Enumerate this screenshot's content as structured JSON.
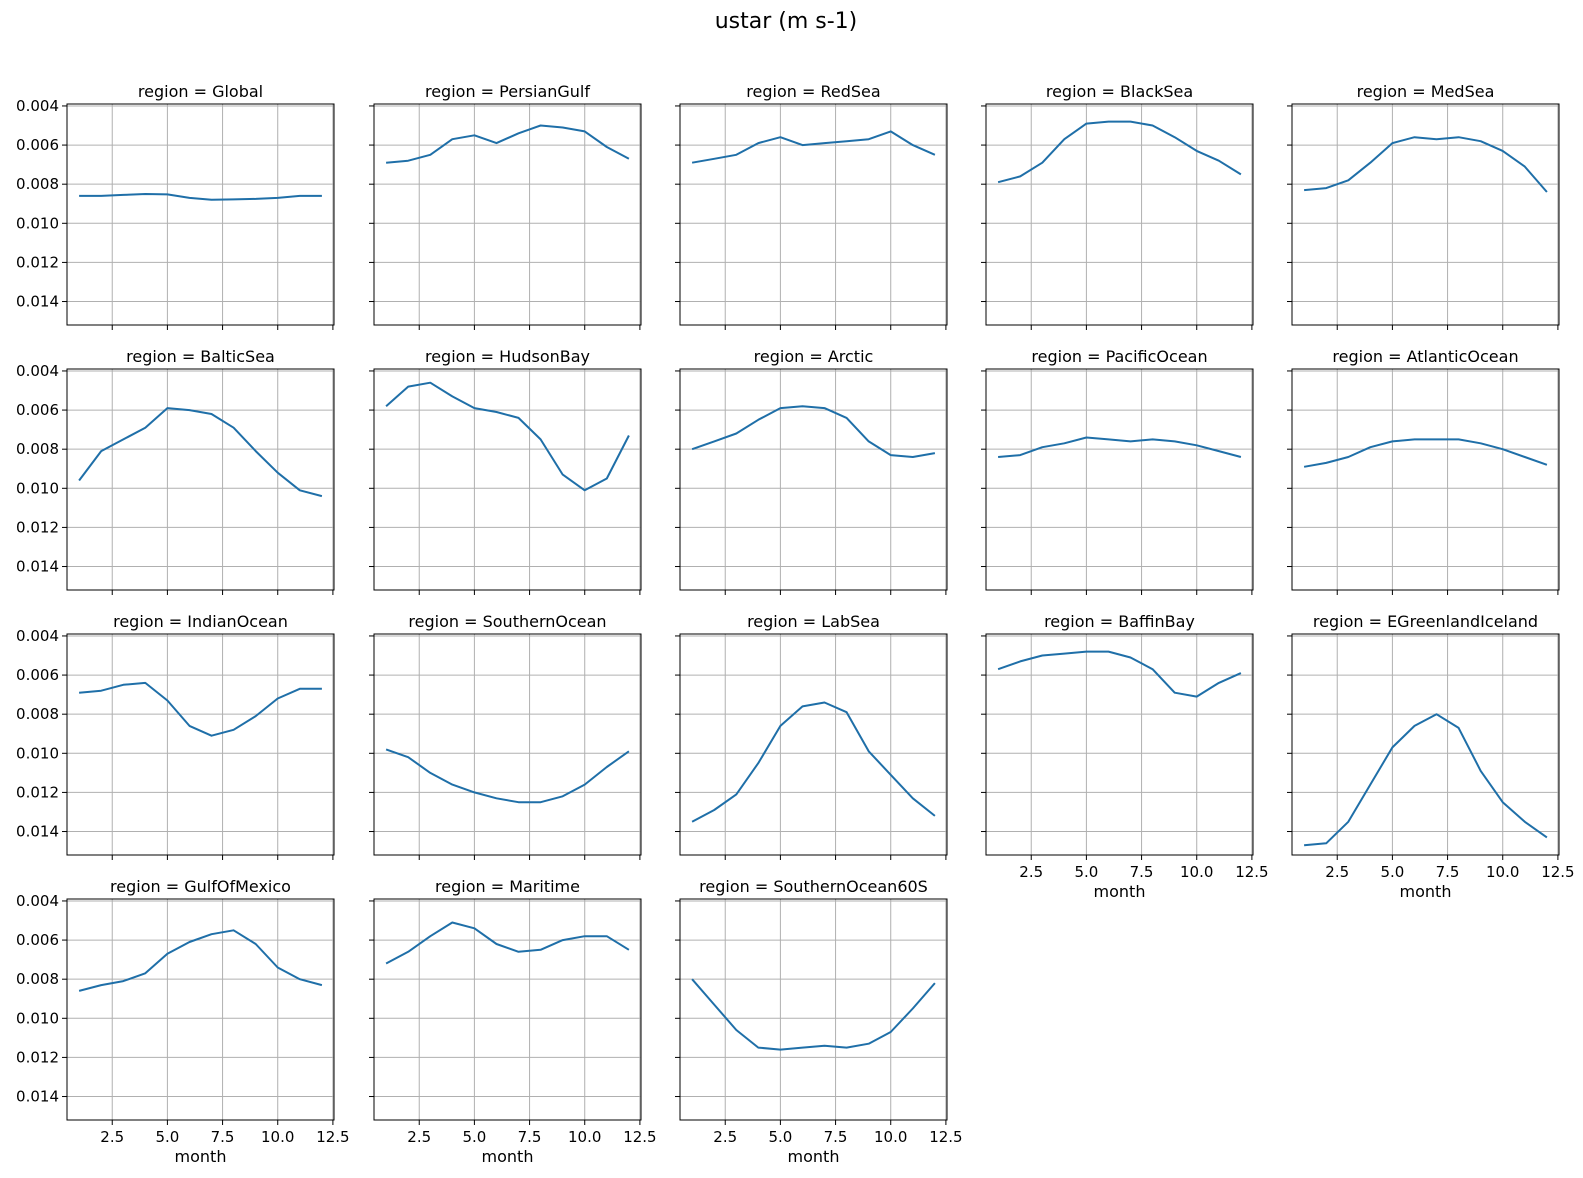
{
  "chart_data": {
    "type": "line",
    "title": "ustar (m s-1)",
    "xlabel": "month",
    "ylabel": "",
    "xlim": [
      0.45,
      12.55
    ],
    "ylim": [
      0.0152,
      0.0039
    ],
    "y_inverted": true,
    "xticks": [
      2.5,
      5.0,
      7.5,
      10.0,
      12.5
    ],
    "xtick_labels": [
      "2.5",
      "5.0",
      "7.5",
      "10.0",
      "12.5"
    ],
    "yticks": [
      0.004,
      0.006,
      0.008,
      0.01,
      0.012,
      0.014
    ],
    "ytick_labels": [
      "0.004",
      "0.006",
      "0.008",
      "0.010",
      "0.012",
      "0.014"
    ],
    "grid": true,
    "line_color": "#1f6fa8",
    "x": [
      1,
      2,
      3,
      4,
      5,
      6,
      7,
      8,
      9,
      10,
      11,
      12
    ],
    "panels": [
      {
        "title": "region = Global",
        "values": [
          0.0086,
          0.0086,
          0.00855,
          0.0085,
          0.00852,
          0.0087,
          0.0088,
          0.00878,
          0.00875,
          0.0087,
          0.0086,
          0.0086
        ]
      },
      {
        "title": "region = PersianGulf",
        "values": [
          0.0069,
          0.0068,
          0.0065,
          0.0057,
          0.0055,
          0.0059,
          0.0054,
          0.005,
          0.0051,
          0.0053,
          0.0061,
          0.0067
        ]
      },
      {
        "title": "region = RedSea",
        "values": [
          0.0069,
          0.0067,
          0.0065,
          0.0059,
          0.0056,
          0.006,
          0.0059,
          0.0058,
          0.0057,
          0.0053,
          0.006,
          0.0065
        ]
      },
      {
        "title": "region = BlackSea",
        "values": [
          0.0079,
          0.0076,
          0.0069,
          0.0057,
          0.0049,
          0.0048,
          0.0048,
          0.005,
          0.0056,
          0.0063,
          0.0068,
          0.0075
        ]
      },
      {
        "title": "region = MedSea",
        "values": [
          0.0083,
          0.0082,
          0.0078,
          0.0069,
          0.0059,
          0.0056,
          0.0057,
          0.0056,
          0.0058,
          0.0063,
          0.0071,
          0.0084
        ]
      },
      {
        "title": "region = BalticSea",
        "values": [
          0.0096,
          0.0081,
          0.0075,
          0.0069,
          0.0059,
          0.006,
          0.0062,
          0.0069,
          0.0081,
          0.0092,
          0.0101,
          0.0104
        ]
      },
      {
        "title": "region = HudsonBay",
        "values": [
          0.0058,
          0.0048,
          0.0046,
          0.0053,
          0.0059,
          0.0061,
          0.0064,
          0.0075,
          0.0093,
          0.0101,
          0.0095,
          0.0073
        ]
      },
      {
        "title": "region = Arctic",
        "values": [
          0.008,
          0.0076,
          0.0072,
          0.0065,
          0.0059,
          0.0058,
          0.0059,
          0.0064,
          0.0076,
          0.0083,
          0.0084,
          0.0082
        ]
      },
      {
        "title": "region = PacificOcean",
        "values": [
          0.0084,
          0.0083,
          0.0079,
          0.0077,
          0.0074,
          0.0075,
          0.0076,
          0.0075,
          0.0076,
          0.0078,
          0.0081,
          0.0084
        ]
      },
      {
        "title": "region = AtlanticOcean",
        "values": [
          0.0089,
          0.0087,
          0.0084,
          0.0079,
          0.0076,
          0.0075,
          0.0075,
          0.0075,
          0.0077,
          0.008,
          0.0084,
          0.0088
        ]
      },
      {
        "title": "region = IndianOcean",
        "values": [
          0.0069,
          0.0068,
          0.0065,
          0.0064,
          0.0073,
          0.0086,
          0.0091,
          0.0088,
          0.0081,
          0.0072,
          0.0067,
          0.0067
        ]
      },
      {
        "title": "region = SouthernOcean",
        "values": [
          0.0098,
          0.0102,
          0.011,
          0.0116,
          0.012,
          0.0123,
          0.0125,
          0.0125,
          0.0122,
          0.0116,
          0.0107,
          0.0099
        ]
      },
      {
        "title": "region = LabSea",
        "values": [
          0.0135,
          0.0129,
          0.0121,
          0.0105,
          0.0086,
          0.0076,
          0.0074,
          0.0079,
          0.0099,
          0.0111,
          0.0123,
          0.0132
        ]
      },
      {
        "title": "region = BaffinBay",
        "values": [
          0.0057,
          0.0053,
          0.005,
          0.0049,
          0.0048,
          0.0048,
          0.0051,
          0.0057,
          0.0069,
          0.0071,
          0.0064,
          0.0059
        ]
      },
      {
        "title": "region = EGreenlandIceland",
        "values": [
          0.0147,
          0.0146,
          0.0135,
          0.0116,
          0.0097,
          0.0086,
          0.008,
          0.0087,
          0.0109,
          0.0125,
          0.0135,
          0.0143
        ]
      },
      {
        "title": "region = GulfOfMexico",
        "values": [
          0.0086,
          0.0083,
          0.0081,
          0.0077,
          0.0067,
          0.0061,
          0.0057,
          0.0055,
          0.0062,
          0.0074,
          0.008,
          0.0083
        ]
      },
      {
        "title": "region = Maritime",
        "values": [
          0.0072,
          0.0066,
          0.0058,
          0.0051,
          0.0054,
          0.0062,
          0.0066,
          0.0065,
          0.006,
          0.0058,
          0.0058,
          0.0065
        ]
      },
      {
        "title": "region = SouthernOcean60S",
        "values": [
          0.008,
          0.0093,
          0.0106,
          0.0115,
          0.0116,
          0.0115,
          0.0114,
          0.0115,
          0.0113,
          0.0107,
          0.0095,
          0.0082
        ]
      }
    ]
  }
}
